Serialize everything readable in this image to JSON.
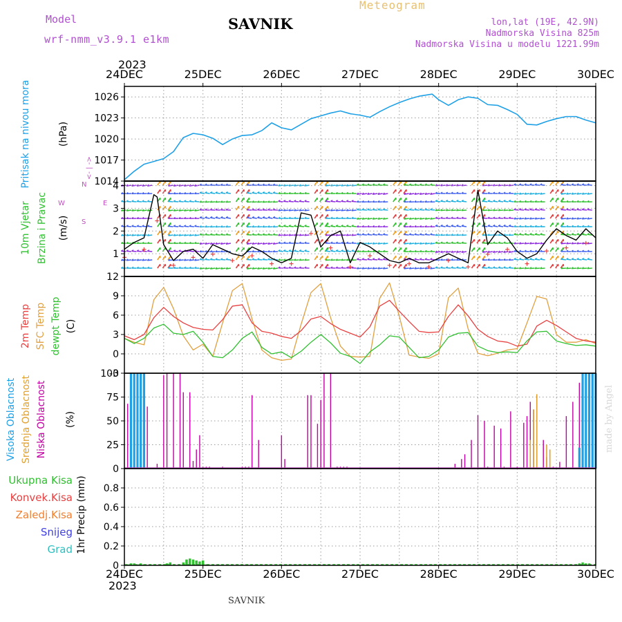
{
  "header": {
    "model_label": "Model",
    "model_name": "wrf-nmm_v3.9.1 e1km",
    "station": "SAVNIK",
    "product": "Meteogram",
    "lonlat": "lon,lat (19E, 42.9N)",
    "elevation": "Nadmorska Visina 825m",
    "model_elevation": "Nadmorska Visina u modelu 1221.99m",
    "footer_station": "SAVNIK",
    "credit": "made by Angel"
  },
  "time_axis": {
    "year": "2023",
    "ticks": [
      "24DEC",
      "25DEC",
      "26DEC",
      "27DEC",
      "28DEC",
      "29DEC",
      "30DEC"
    ]
  },
  "panel_labels": {
    "pressure": [
      "Pritisak na nivou mora"
    ],
    "pressure_unit": "(hPa)",
    "wind": [
      "10m Vjetar",
      "Brzina i Pravac"
    ],
    "wind_unit": "(m/s)",
    "compass": [
      "N",
      "<- | ->",
      "S"
    ],
    "compass_w": "W",
    "compass_e": "E",
    "temp": [
      "2m Temp",
      "SFC Temp",
      "dewpt Temp"
    ],
    "temp_unit": "(C)",
    "cloud": [
      "Visoka Oblacnost",
      "Srednja Oblacnost",
      "Niska Oblacnost"
    ],
    "cloud_unit": "(%)",
    "precip_legend": [
      "Ukupna Kisa",
      "Konvek.Kisa",
      "Zaledj.Kisa",
      "Snijeg",
      "Grad"
    ],
    "precip_unit": "1hr Precip (mm)"
  },
  "colors": {
    "pressure": "#1ea0e6",
    "temp_2m": "#e84040",
    "temp_sfc": "#e0a040",
    "temp_dewpt": "#30c030",
    "cloud_high": "#1ea0e6",
    "cloud_mid": "#e0a030",
    "cloud_low": "#c000a0",
    "precip_total": "#30c030",
    "precip_conv": "#e84040",
    "precip_frz": "#f08030",
    "precip_snow": "#4040e0",
    "precip_hail": "#30c0c0",
    "compass": "#c050c0"
  },
  "chart_data": [
    {
      "type": "line",
      "panel": "pressure",
      "ylabel": "(hPa)",
      "ylim": [
        1014,
        1027.5
      ],
      "yticks": [
        1014,
        1017,
        1020,
        1023,
        1026
      ],
      "grid": true,
      "x_hours": [
        0,
        3,
        6,
        9,
        12,
        15,
        18,
        21,
        24,
        27,
        30,
        33,
        36,
        39,
        42,
        45,
        48,
        51,
        54,
        57,
        60,
        63,
        66,
        69,
        72,
        75,
        78,
        81,
        84,
        87,
        90,
        94,
        96,
        99,
        102,
        105,
        108,
        111,
        114,
        117,
        120,
        123,
        126,
        129,
        132,
        135,
        138,
        141,
        144
      ],
      "series": [
        {
          "values": [
            1014.2,
            1015.4,
            1016.4,
            1016.8,
            1017.2,
            1018.2,
            1020.2,
            1020.8,
            1020.6,
            1020.1,
            1019.2,
            1020.0,
            1020.5,
            1020.6,
            1021.2,
            1022.3,
            1021.6,
            1021.3,
            1022.1,
            1022.9,
            1023.3,
            1023.7,
            1024.0,
            1023.6,
            1023.4,
            1023.1,
            1023.9,
            1024.6,
            1025.2,
            1025.7,
            1026.1,
            1026.4,
            1025.6,
            1024.8,
            1025.6,
            1026.0,
            1025.8,
            1024.9,
            1024.8,
            1024.2,
            1023.5,
            1022.1,
            1022.0,
            1022.5,
            1022.9,
            1023.2,
            1023.2,
            1022.7,
            1022.3
          ]
        }
      ]
    },
    {
      "type": "line",
      "panel": "wind",
      "ylabel": "(m/s)",
      "ylim": [
        0,
        4.2
      ],
      "yticks": [
        1,
        2,
        3,
        4
      ],
      "grid": true,
      "x_hours": [
        0,
        3,
        6,
        9,
        10,
        12,
        15,
        18,
        21,
        24,
        27,
        30,
        33,
        36,
        39,
        42,
        45,
        48,
        51,
        54,
        57,
        60,
        63,
        66,
        69,
        72,
        75,
        78,
        81,
        84,
        87,
        90,
        93,
        96,
        99,
        102,
        105,
        108,
        111,
        114,
        117,
        120,
        123,
        126,
        129,
        132,
        135,
        138,
        141,
        144
      ],
      "series": [
        {
          "name": "wind",
          "values": [
            1.2,
            1.5,
            1.7,
            3.6,
            3.5,
            1.4,
            0.7,
            1.1,
            1.2,
            0.8,
            1.4,
            1.2,
            1.0,
            0.9,
            1.3,
            1.1,
            0.8,
            0.6,
            0.8,
            2.8,
            2.7,
            1.3,
            1.8,
            2.0,
            0.6,
            1.5,
            1.3,
            1.0,
            0.7,
            0.6,
            0.8,
            0.6,
            0.6,
            0.8,
            1.0,
            0.8,
            0.6,
            3.8,
            1.4,
            2.0,
            1.7,
            1.1,
            0.8,
            1.0,
            1.6,
            2.1,
            1.8,
            1.6,
            2.1,
            1.7
          ]
        }
      ]
    },
    {
      "type": "line",
      "panel": "temperature",
      "ylabel": "(C)",
      "ylim": [
        -3,
        12
      ],
      "yticks": [
        -3,
        0,
        3,
        6,
        9,
        12
      ],
      "grid": true,
      "x_hours": [
        0,
        3,
        6,
        9,
        12,
        15,
        18,
        21,
        24,
        27,
        30,
        33,
        36,
        39,
        42,
        45,
        48,
        51,
        54,
        57,
        60,
        63,
        66,
        69,
        72,
        75,
        78,
        81,
        84,
        87,
        90,
        93,
        96,
        99,
        102,
        105,
        108,
        111,
        114,
        117,
        120,
        123,
        126,
        129,
        132,
        135,
        138,
        141,
        144
      ],
      "series": [
        {
          "name": "2m Temp",
          "values": [
            2.8,
            2.2,
            3.0,
            5.6,
            7.2,
            5.8,
            4.8,
            4.1,
            3.8,
            3.7,
            5.3,
            7.4,
            7.6,
            4.8,
            3.5,
            3.2,
            2.7,
            2.4,
            3.6,
            5.4,
            5.8,
            4.7,
            3.8,
            3.2,
            2.6,
            4.2,
            7.4,
            8.3,
            6.6,
            5.0,
            3.5,
            3.3,
            3.4,
            5.8,
            7.6,
            5.9,
            3.8,
            2.7,
            2.0,
            1.8,
            1.2,
            1.5,
            4.3,
            5.2,
            4.4,
            3.4,
            2.4,
            2.0,
            1.8
          ]
        },
        {
          "name": "SFC Temp",
          "values": [
            2.4,
            1.8,
            1.4,
            8.4,
            10.3,
            7.0,
            2.8,
            0.6,
            1.5,
            -0.4,
            4.8,
            9.8,
            10.9,
            5.4,
            0.6,
            -0.6,
            -1.0,
            -0.8,
            4.6,
            9.5,
            10.9,
            5.6,
            1.2,
            -0.4,
            -0.5,
            -0.4,
            8.6,
            11.0,
            5.8,
            -0.2,
            -0.5,
            -0.7,
            0.0,
            8.7,
            10.2,
            3.9,
            0.1,
            -0.3,
            0.1,
            0.6,
            0.8,
            4.8,
            8.9,
            8.5,
            3.0,
            1.8,
            1.8,
            2.2,
            1.6
          ]
        },
        {
          "name": "dewpt Temp",
          "values": [
            2.4,
            1.6,
            2.4,
            4.0,
            4.6,
            3.2,
            3.0,
            3.5,
            1.8,
            -0.4,
            -0.6,
            0.6,
            2.4,
            3.4,
            1.0,
            0.0,
            0.3,
            -0.6,
            0.4,
            1.8,
            3.0,
            1.7,
            0.1,
            -0.4,
            -1.5,
            0.3,
            1.4,
            2.8,
            2.6,
            1.0,
            -0.6,
            -0.4,
            0.6,
            2.6,
            3.2,
            3.3,
            1.2,
            0.5,
            0.2,
            0.3,
            0.2,
            2.0,
            3.4,
            3.5,
            2.0,
            1.6,
            1.3,
            1.4,
            1.2
          ]
        }
      ]
    },
    {
      "type": "bar",
      "panel": "cloud",
      "ylabel": "(%)",
      "ylim": [
        0,
        100
      ],
      "yticks": [
        0,
        25,
        50,
        75,
        100
      ],
      "grid": true,
      "series": [
        {
          "name": "Visoka Oblacnost",
          "x_hours": [
            2,
            3,
            4,
            5,
            6,
            139,
            140,
            141,
            142,
            143,
            144
          ],
          "values": [
            100,
            100,
            100,
            100,
            100,
            22,
            100,
            100,
            100,
            100,
            100
          ]
        },
        {
          "name": "Srednja Oblacnost",
          "x_hours": [
            124,
            125,
            126,
            129,
            130
          ],
          "values": [
            30,
            62,
            78,
            25,
            20
          ]
        },
        {
          "name": "Niska Oblacnost",
          "x_hours": [
            1,
            5,
            6,
            7,
            10,
            12,
            13,
            15,
            17,
            18,
            20,
            21,
            22,
            23,
            24,
            25,
            26,
            30,
            36,
            37,
            38,
            39,
            41,
            48,
            49,
            56,
            57,
            59,
            60,
            61,
            63,
            65,
            66,
            67,
            68,
            101,
            103,
            104,
            106,
            108,
            110,
            111,
            113,
            115,
            116,
            118,
            120,
            122,
            123,
            124,
            125,
            126,
            128,
            129,
            131,
            133,
            135,
            137,
            139,
            140
          ],
          "values": [
            68,
            100,
            57,
            65,
            5,
            98,
            100,
            100,
            100,
            80,
            80,
            8,
            20,
            35,
            2,
            2,
            2,
            2,
            2,
            2,
            2,
            77,
            30,
            35,
            10,
            77,
            77,
            47,
            72,
            100,
            100,
            2,
            2,
            2,
            2,
            5,
            10,
            15,
            30,
            56,
            50,
            2,
            45,
            42,
            2,
            60,
            2,
            48,
            55,
            70,
            62,
            35,
            30,
            12,
            2,
            7,
            55,
            70,
            90,
            80
          ]
        }
      ]
    },
    {
      "type": "bar",
      "panel": "precipitation",
      "ylabel": "1hr Precip (mm)",
      "ylim": [
        0,
        1
      ],
      "yticks": [
        0,
        0.2,
        0.4,
        0.6,
        0.8
      ],
      "grid": true,
      "series": [
        {
          "name": "Ukupna Kisa",
          "x_hours": [
            1,
            2,
            3,
            4,
            5,
            6,
            13,
            14,
            18,
            19,
            20,
            21,
            22,
            23,
            24,
            25,
            139,
            140,
            141,
            142
          ],
          "values": [
            0.01,
            0.02,
            0.02,
            0.01,
            0.02,
            0.01,
            0.02,
            0.03,
            0.03,
            0.06,
            0.07,
            0.06,
            0.05,
            0.04,
            0.05,
            0.01,
            0.02,
            0.03,
            0.02,
            0.02
          ]
        }
      ]
    }
  ]
}
